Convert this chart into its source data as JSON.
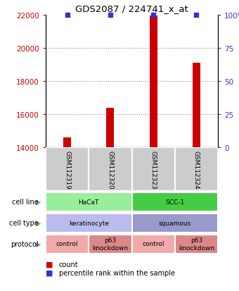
{
  "title": "GDS2087 / 224741_x_at",
  "samples": [
    "GSM112319",
    "GSM112320",
    "GSM112323",
    "GSM112324"
  ],
  "red_values": [
    14600,
    16400,
    21950,
    19100
  ],
  "ylim": [
    14000,
    22000
  ],
  "yticks_left": [
    14000,
    16000,
    18000,
    20000,
    22000
  ],
  "yticks_right": [
    0,
    25,
    50,
    75,
    100
  ],
  "bar_color": "#cc0000",
  "blue_marker_color": "#3333cc",
  "grid_color": "#888888",
  "sample_box_color": "#cccccc",
  "cell_line_data": [
    {
      "label": "HaCaT",
      "span": [
        0,
        2
      ],
      "color": "#99ee99"
    },
    {
      "label": "SCC-1",
      "span": [
        2,
        4
      ],
      "color": "#44cc44"
    }
  ],
  "cell_type_data": [
    {
      "label": "keratinocyte",
      "span": [
        0,
        2
      ],
      "color": "#bbbbee"
    },
    {
      "label": "squamous",
      "span": [
        2,
        4
      ],
      "color": "#9999cc"
    }
  ],
  "protocol_data": [
    {
      "label": "control",
      "span": [
        0,
        1
      ],
      "color": "#f0aaaa"
    },
    {
      "label": "p63\nknockdown",
      "span": [
        1,
        2
      ],
      "color": "#dd8888"
    },
    {
      "label": "control",
      "span": [
        2,
        3
      ],
      "color": "#f0aaaa"
    },
    {
      "label": "p63\nknockdown",
      "span": [
        3,
        4
      ],
      "color": "#dd8888"
    }
  ],
  "left_label_color": "#cc0000",
  "right_label_color": "#3333cc",
  "bar_width": 0.18
}
